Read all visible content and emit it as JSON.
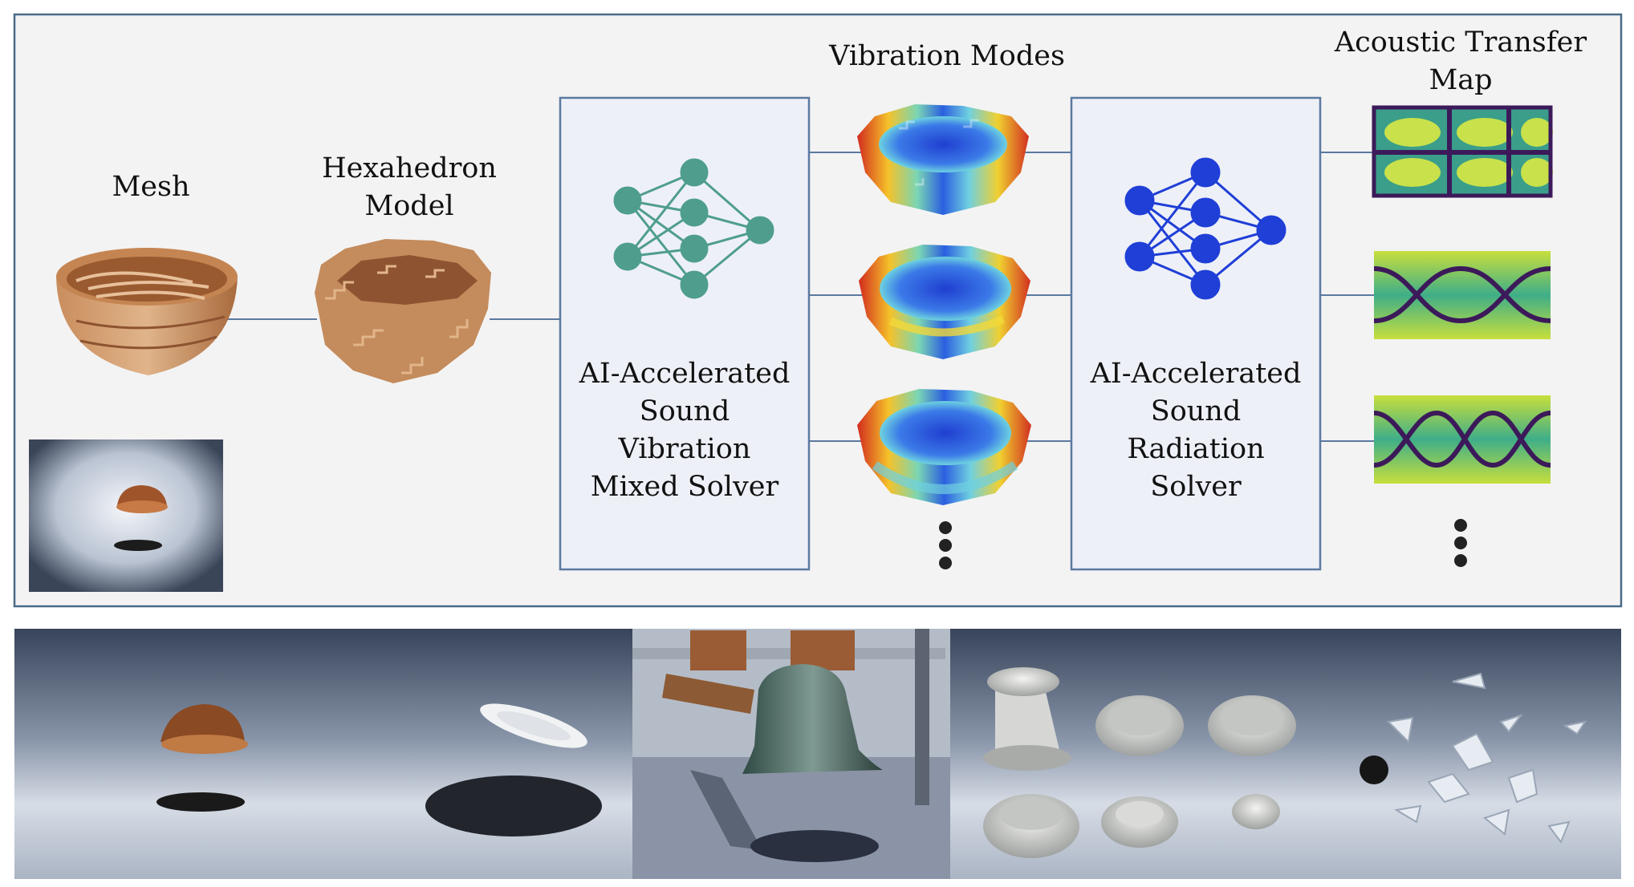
{
  "labels": {
    "mesh": "Mesh",
    "hexahedron": "Hexahedron\nModel",
    "vibration_modes": "Vibration Modes",
    "acoustic_transfer": "Acoustic Transfer\nMap"
  },
  "solvers": {
    "vibration": "AI-Accelerated\nSound\nVibration\nMixed Solver",
    "radiation": "AI-Accelerated\nSound\nRadiation\nSolver"
  },
  "colors": {
    "panel_border": "#4a6a88",
    "panel_fill": "#f3f3f3",
    "solver_box_fill": "#eef0f8",
    "solver_box_border": "#5b79a0",
    "connector": "#5b79a0",
    "vibration_net": "#4f9e8c",
    "radiation_net": "#1f3fd6",
    "wood": "#b47448"
  },
  "bottom_scenes": [
    "wooden-bowl-scene",
    "plate-scene",
    "bell-scene",
    "cups-scene",
    "shattered-glass-scene"
  ]
}
